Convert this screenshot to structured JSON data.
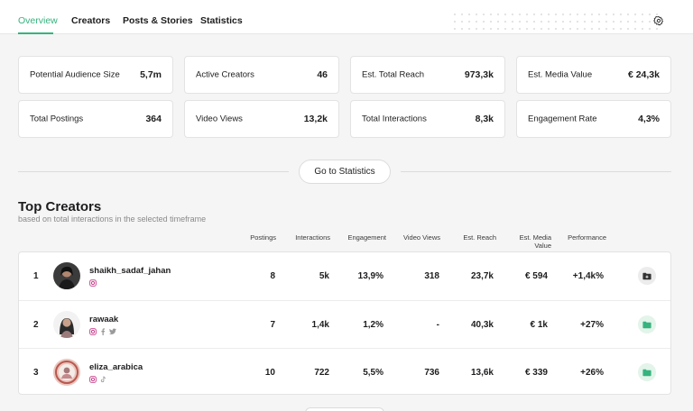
{
  "nav": {
    "tabs": [
      "Overview",
      "Creators",
      "Posts & Stories",
      "Statistics"
    ],
    "active_tab": "Overview",
    "settings_icon": "gear-icon"
  },
  "stats": [
    {
      "label": "Potential Audience Size",
      "value": "5,7m"
    },
    {
      "label": "Active Creators",
      "value": "46"
    },
    {
      "label": "Est. Total Reach",
      "value": "973,3k"
    },
    {
      "label": "Est. Media Value",
      "value": "€ 24,3k"
    },
    {
      "label": "Total Postings",
      "value": "364"
    },
    {
      "label": "Video Views",
      "value": "13,2k"
    },
    {
      "label": "Total Interactions",
      "value": "8,3k"
    },
    {
      "label": "Engagement Rate",
      "value": "4,3%"
    }
  ],
  "go_to_statistics": "Go to Statistics",
  "top_creators": {
    "title": "Top Creators",
    "subtitle": "based on total interactions in the selected timeframe",
    "columns": [
      "Postings",
      "Interactions",
      "Engagement",
      "Video Views",
      "Est. Reach",
      "Est. Media Value",
      "Performance"
    ],
    "rows": [
      {
        "rank": "1",
        "name": "shaikh_sadaf_jahan",
        "socials": [
          "instagram-icon"
        ],
        "postings": "8",
        "interactions": "5k",
        "engagement": "13,9%",
        "video_views": "318",
        "reach": "23,7k",
        "media_value": "€ 594",
        "performance": "+1,4k%",
        "action_icon": "folder-add-icon"
      },
      {
        "rank": "2",
        "name": "rawaak",
        "socials": [
          "instagram-icon",
          "facebook-icon",
          "twitter-icon"
        ],
        "postings": "7",
        "interactions": "1,4k",
        "engagement": "1,2%",
        "video_views": "-",
        "reach": "40,3k",
        "media_value": "€ 1k",
        "performance": "+27%",
        "action_icon": "folder-icon"
      },
      {
        "rank": "3",
        "name": "eliza_arabica",
        "socials": [
          "instagram-icon",
          "tiktok-icon"
        ],
        "postings": "10",
        "interactions": "722",
        "engagement": "5,5%",
        "video_views": "736",
        "reach": "13,6k",
        "media_value": "€ 339",
        "performance": "+26%",
        "action_icon": "folder-icon"
      }
    ]
  },
  "colors": {
    "accent": "#36b37e",
    "instagram": "#c13584",
    "muted_icon": "#9a9a9a"
  }
}
